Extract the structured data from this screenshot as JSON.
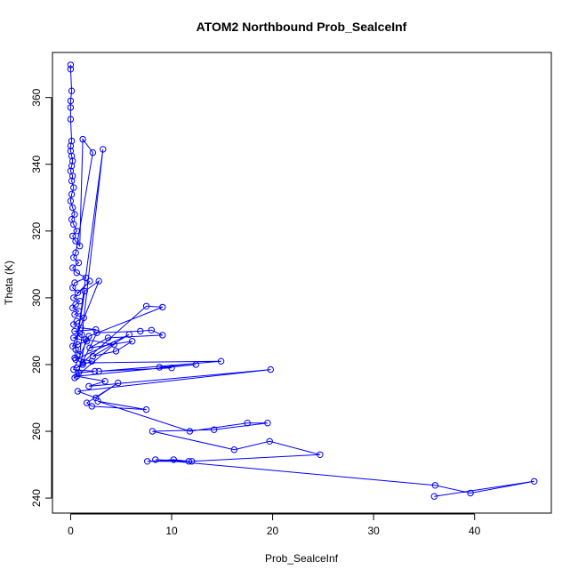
{
  "chart_data": {
    "type": "scatter",
    "title": "ATOM2 Northbound Prob_SealceInf",
    "xlabel": "Prob_SealceInf",
    "ylabel": "Theta (K)",
    "xlim": [
      -1.8,
      47.6
    ],
    "ylim": [
      235.5,
      373.5
    ],
    "xticks": [
      0,
      10,
      20,
      30,
      40
    ],
    "yticks": [
      240,
      260,
      280,
      300,
      320,
      340,
      360
    ],
    "series_color": "#0000ff",
    "series": [
      {
        "name": "Prob_SealceInf vs Theta",
        "style": "line+points",
        "x": [
          0.0,
          0.0,
          0.1,
          0.0,
          0.0,
          0.0,
          0.1,
          0.0,
          0.0,
          0.1,
          0.2,
          0.1,
          0.0,
          0.2,
          0.1,
          0.3,
          0.1,
          0.0,
          0.2,
          0.4,
          0.1,
          0.3,
          0.6,
          0.2,
          0.5,
          0.9,
          1.2,
          2.2,
          0.5,
          0.3,
          0.8,
          0.2,
          0.6,
          1.5,
          0.4,
          0.2,
          0.7,
          1.9,
          0.3,
          0.9,
          0.5,
          0.2,
          0.8,
          0.4,
          1.3,
          0.6,
          0.3,
          1.0,
          2.5,
          0.4,
          1.1,
          0.3,
          1.6,
          0.7,
          0.2,
          2.8,
          1.4,
          0.5,
          0.9,
          3.2,
          0.4,
          2.1,
          1.2,
          0.6,
          7.5,
          9.1,
          1.8,
          0.3,
          2.4,
          0.8,
          1.5,
          4.3,
          0.4,
          2.6,
          6.9,
          8.0,
          9.1,
          3.7,
          1.9,
          6.1,
          4.5,
          2.2,
          5.8,
          0.5,
          1.2,
          14.9,
          2.8,
          10.0,
          8.8,
          12.4,
          0.6,
          3.4,
          1.8,
          19.8,
          0.7,
          2.5,
          4.7,
          1.6,
          2.1,
          7.5,
          2.7,
          11.8,
          17.5,
          19.5,
          14.2,
          8.1,
          16.2,
          19.7,
          24.7,
          12.0,
          7.6,
          10.2,
          11.7,
          8.4,
          36.1,
          39.6,
          45.9,
          36.0
        ],
        "y": [
          369.8,
          368.5,
          362.0,
          359.0,
          357.0,
          353.5,
          347.0,
          345.5,
          344.0,
          342.5,
          341.0,
          339.5,
          338.0,
          336.5,
          335.0,
          333.0,
          331.0,
          329.0,
          327.0,
          325.0,
          323.5,
          322.0,
          320.0,
          318.5,
          317.0,
          315.5,
          347.5,
          343.5,
          313.5,
          312.0,
          310.5,
          309.0,
          307.5,
          306.0,
          304.5,
          303.0,
          301.5,
          305.0,
          300.0,
          299.0,
          298.0,
          297.0,
          296.0,
          295.0,
          294.0,
          293.0,
          292.0,
          291.0,
          290.5,
          290.0,
          289.0,
          288.0,
          287.0,
          286.0,
          285.5,
          305.0,
          302.0,
          284.5,
          283.0,
          344.5,
          282.0,
          281.0,
          280.0,
          279.0,
          297.5,
          297.2,
          288.5,
          278.5,
          278.0,
          277.5,
          287.5,
          286.0,
          276.0,
          289.5,
          290.0,
          290.3,
          288.8,
          288.0,
          285.0,
          287.0,
          284.0,
          282.5,
          289.0,
          281.5,
          280.5,
          281.0,
          278.0,
          279.0,
          279.2,
          280.0,
          276.5,
          275.0,
          273.5,
          278.5,
          272.0,
          270.0,
          274.5,
          268.5,
          267.5,
          266.5,
          269.0,
          260.0,
          262.5,
          262.5,
          260.5,
          260.0,
          254.5,
          257.0,
          253.0,
          251.0,
          251.0,
          251.5,
          251.0,
          251.5,
          243.8,
          241.5,
          245.0,
          240.5
        ]
      }
    ]
  }
}
